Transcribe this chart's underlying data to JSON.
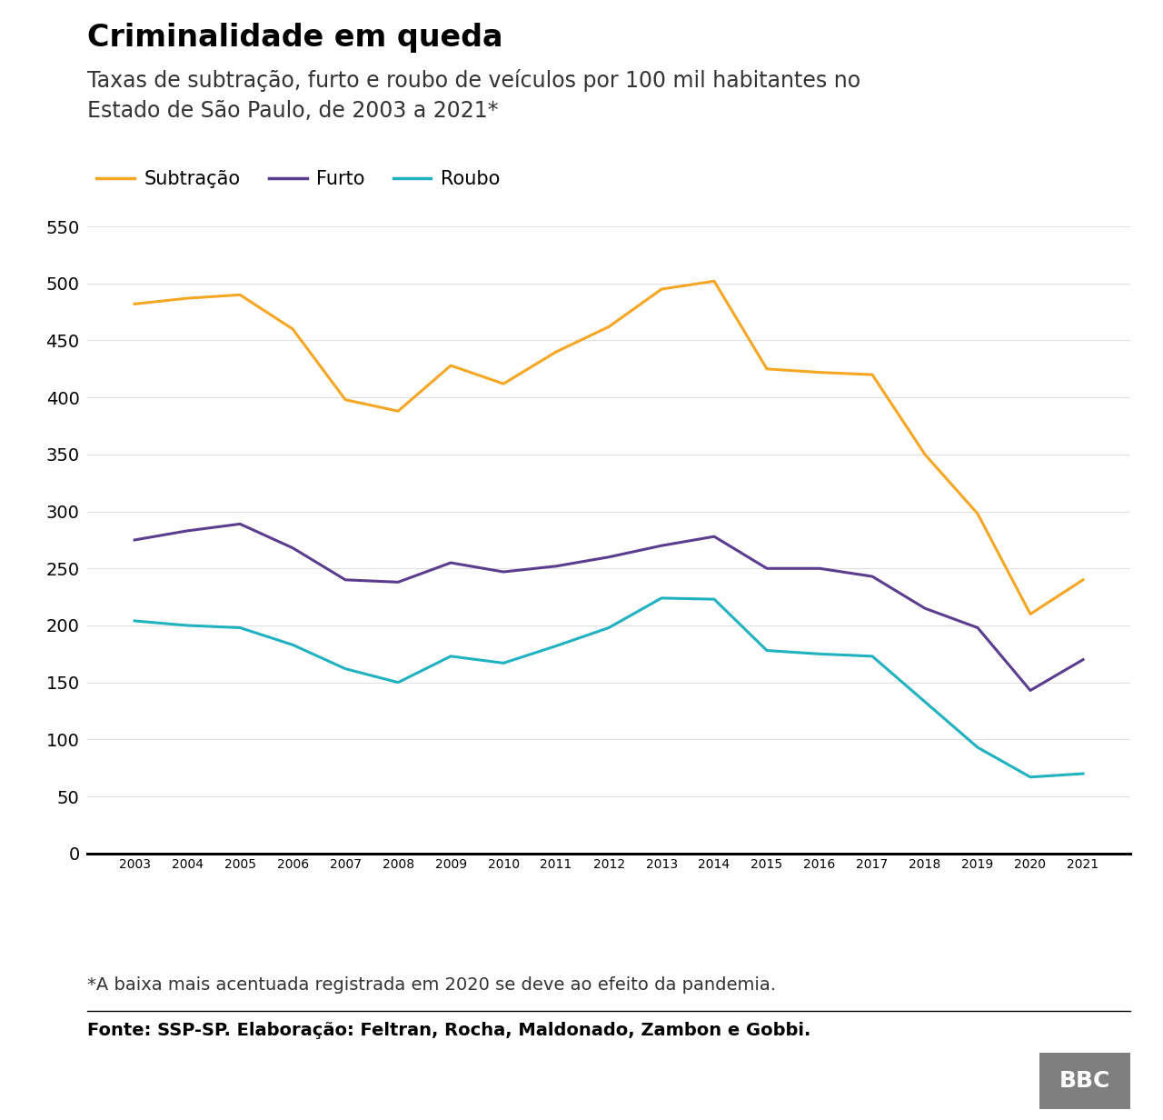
{
  "title": "Criminalidade em queda",
  "subtitle": "Taxas de subtração, furto e roubo de veículos por 100 mil habitantes no\nEstado de São Paulo, de 2003 a 2021*",
  "footnote": "*A baixa mais acentuada registrada em 2020 se deve ao efeito da pandemia.",
  "source": "Fonte: SSP-SP. Elaboração: Feltran, Rocha, Maldonado, Zambon e Gobbi.",
  "years": [
    2003,
    2004,
    2005,
    2006,
    2007,
    2008,
    2009,
    2010,
    2011,
    2012,
    2013,
    2014,
    2015,
    2016,
    2017,
    2018,
    2019,
    2020,
    2021
  ],
  "subtracao": [
    482,
    487,
    490,
    460,
    398,
    388,
    428,
    412,
    440,
    462,
    495,
    502,
    425,
    422,
    420,
    350,
    298,
    210,
    240
  ],
  "furto": [
    275,
    283,
    289,
    268,
    240,
    238,
    255,
    247,
    252,
    260,
    270,
    278,
    250,
    250,
    243,
    215,
    198,
    143,
    170
  ],
  "roubo": [
    204,
    200,
    198,
    183,
    162,
    150,
    173,
    167,
    182,
    198,
    224,
    223,
    178,
    175,
    173,
    133,
    93,
    67,
    70
  ],
  "subtracao_color": "#f5a623",
  "furto_color": "#5b3d8f",
  "roubo_color": "#20b2c0",
  "line_width": 2.2,
  "ylim": [
    0,
    560
  ],
  "yticks": [
    0,
    50,
    100,
    150,
    200,
    250,
    300,
    350,
    400,
    450,
    500,
    550
  ],
  "legend_labels": [
    "Subtração",
    "Furto",
    "Roubo"
  ],
  "background_color": "#ffffff",
  "title_fontsize": 24,
  "subtitle_fontsize": 17,
  "footnote_fontsize": 14,
  "source_fontsize": 14,
  "tick_fontsize": 14,
  "legend_fontsize": 15
}
